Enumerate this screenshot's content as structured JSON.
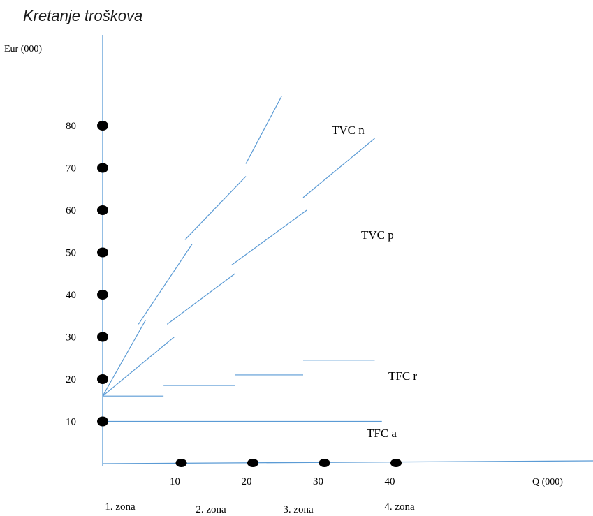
{
  "chart_data": {
    "type": "line",
    "title": "Kretanje troškova",
    "ylabel": "Eur (000)",
    "xlabel": "Q (000)",
    "x_ticks": [
      10,
      20,
      30,
      40
    ],
    "y_ticks": [
      10,
      20,
      30,
      40,
      50,
      60,
      70,
      80
    ],
    "zones": [
      "1. zona",
      "2. zona",
      "3. zona",
      "4. zona"
    ],
    "xlim": [
      0,
      48
    ],
    "ylim": [
      0,
      90
    ],
    "series": [
      {
        "name": "TVC n",
        "segments": [
          [
            [
              0,
              16
            ],
            [
              6,
              34
            ]
          ],
          [
            [
              5,
              33
            ],
            [
              12.5,
              52
            ]
          ],
          [
            [
              11.5,
              53
            ],
            [
              20,
              68
            ]
          ],
          [
            [
              20,
              71
            ],
            [
              25,
              87
            ]
          ]
        ]
      },
      {
        "name": "TVC p",
        "segments": [
          [
            [
              0,
              16
            ],
            [
              10,
              30
            ]
          ],
          [
            [
              9,
              33
            ],
            [
              18.5,
              45
            ]
          ],
          [
            [
              18,
              47
            ],
            [
              28.5,
              60
            ]
          ],
          [
            [
              28,
              63
            ],
            [
              38,
              77
            ]
          ]
        ]
      },
      {
        "name": "TFC r",
        "segments": [
          [
            [
              0,
              16
            ],
            [
              8.5,
              16
            ]
          ],
          [
            [
              8.5,
              18.5
            ],
            [
              18.5,
              18.5
            ]
          ],
          [
            [
              18.5,
              21
            ],
            [
              28,
              21
            ]
          ],
          [
            [
              28,
              24.5
            ],
            [
              38,
              24.5
            ]
          ]
        ]
      },
      {
        "name": "TFC a",
        "segments": [
          [
            [
              0,
              10
            ],
            [
              39,
              10
            ]
          ]
        ]
      }
    ],
    "grid": false,
    "colors": {
      "lines": "#5b9bd5",
      "markers": "#000000",
      "text": "#000000"
    }
  }
}
